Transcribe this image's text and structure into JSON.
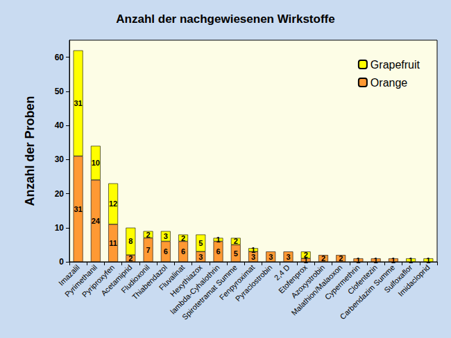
{
  "chart_data": {
    "type": "bar",
    "title": "Anzahl der nachgewiesenen Wirkstoffe",
    "y_label": "Anzahl der Proben",
    "categories": [
      "Imazalil",
      "Pyrimethanil",
      "Pyriproxyfen",
      "Acetamiprid",
      "Fludioxonil",
      "Thiabendazol",
      "Fluvalinat",
      "Hexythiazox",
      "lambda-Cyhalothrin",
      "Spirotetramat Summe",
      "Fenpyroximat",
      "Pyraclostrobin",
      "2,4 D",
      "Etofenprox",
      "Azoxystrobin",
      "Malathion/Malaoxon",
      "Cypermethrin",
      "Clofentezin",
      "Carbendazim Summe",
      "Sulfoxaflor",
      "Imidacloprid"
    ],
    "series": [
      {
        "name": "Orange",
        "color": "#ff9933",
        "values": [
          31,
          24,
          11,
          2,
          7,
          6,
          6,
          3,
          6,
          5,
          3,
          3,
          3,
          1,
          2,
          2,
          1,
          1,
          1,
          null,
          null
        ]
      },
      {
        "name": "Grapefruit",
        "color": "#ffff00",
        "values": [
          31,
          10,
          12,
          8,
          2,
          3,
          2,
          5,
          1,
          2,
          1,
          null,
          null,
          2,
          null,
          null,
          null,
          null,
          null,
          1,
          1
        ]
      }
    ],
    "stacked": true,
    "data_labels": true,
    "ylim": [
      0,
      65
    ],
    "yticks": [
      0,
      10,
      20,
      30,
      40,
      50,
      60
    ],
    "grid": false,
    "legend": "top-right"
  }
}
